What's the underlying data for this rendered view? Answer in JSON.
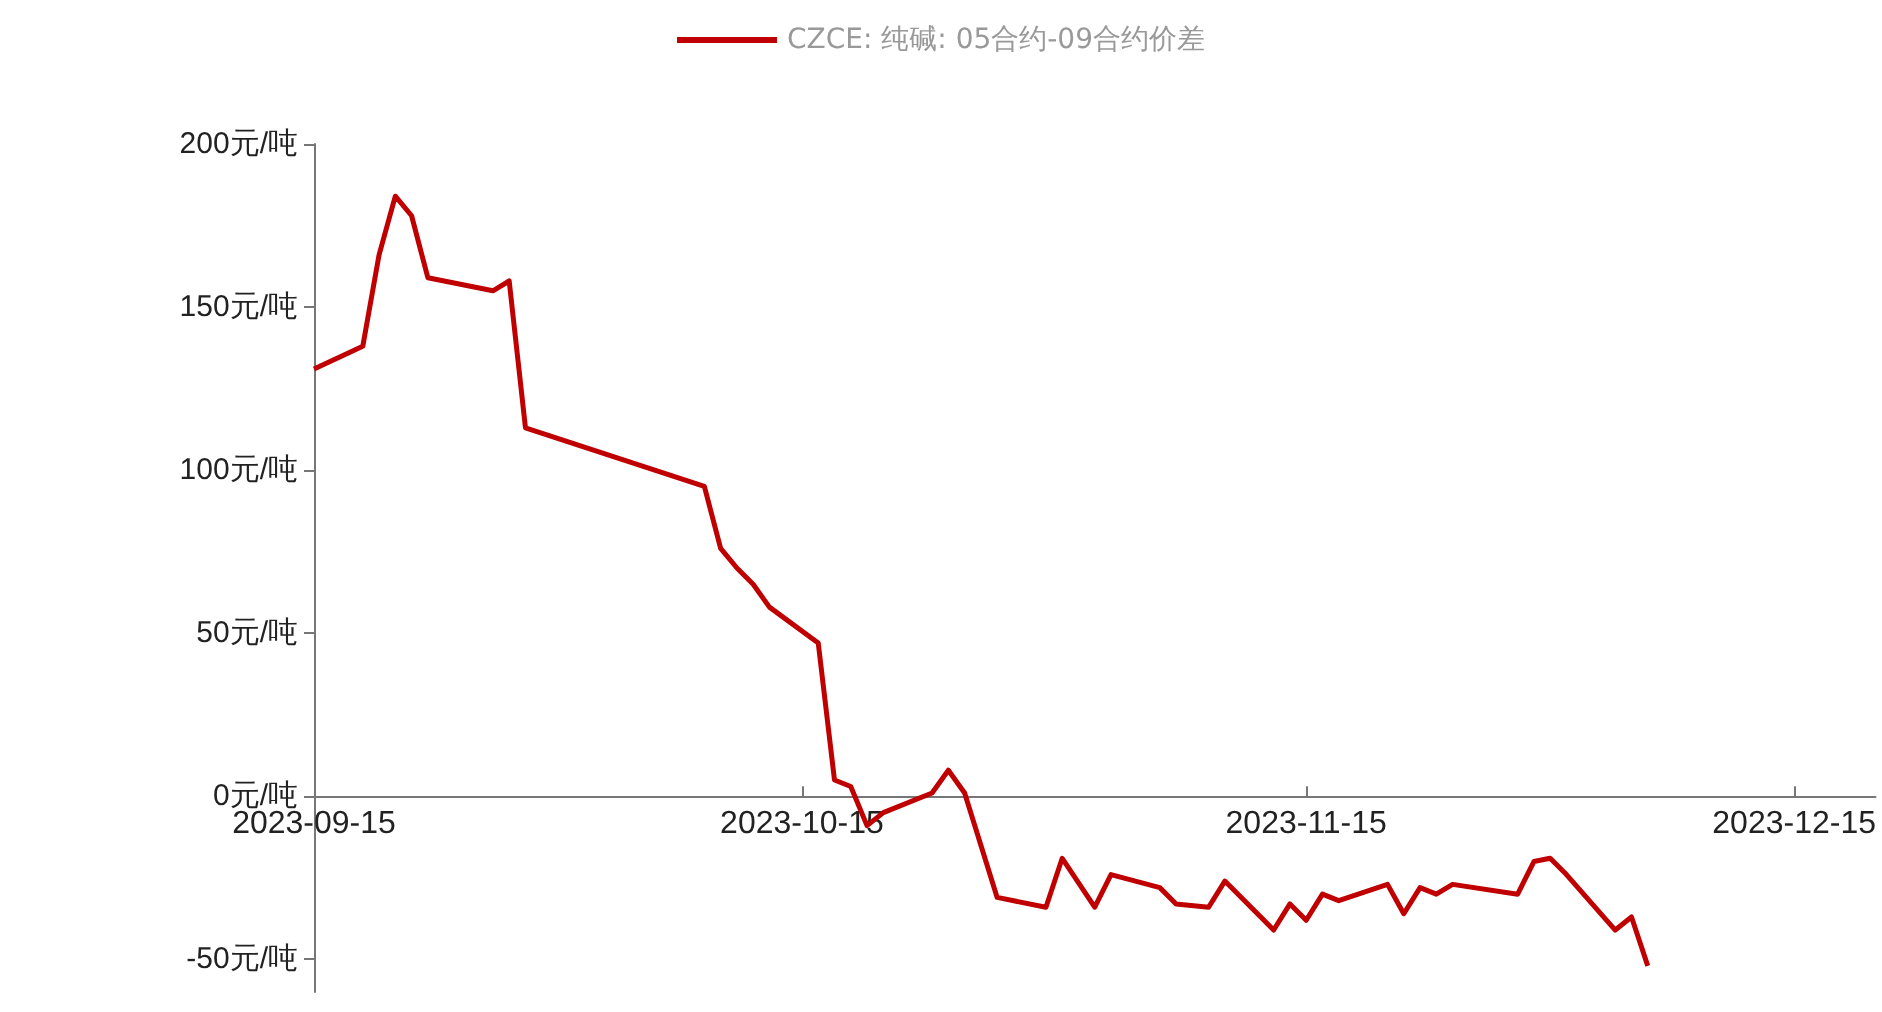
{
  "chart_data": {
    "type": "line",
    "x": [
      "2023-09-15",
      "2023-09-18",
      "2023-09-19",
      "2023-09-20",
      "2023-09-21",
      "2023-09-22",
      "2023-09-26",
      "2023-09-27",
      "2023-09-28",
      "2023-10-09",
      "2023-10-10",
      "2023-10-11",
      "2023-10-12",
      "2023-10-13",
      "2023-10-16",
      "2023-10-17",
      "2023-10-18",
      "2023-10-19",
      "2023-10-20",
      "2023-10-23",
      "2023-10-24",
      "2023-10-25",
      "2023-10-27",
      "2023-10-30",
      "2023-10-31",
      "2023-11-02",
      "2023-11-03",
      "2023-11-06",
      "2023-11-07",
      "2023-11-09",
      "2023-11-10",
      "2023-11-13",
      "2023-11-14",
      "2023-11-15",
      "2023-11-16",
      "2023-11-17",
      "2023-11-20",
      "2023-11-21",
      "2023-11-22",
      "2023-11-23",
      "2023-11-24",
      "2023-11-28",
      "2023-11-29",
      "2023-11-30",
      "2023-12-01",
      "2023-12-04",
      "2023-12-05",
      "2023-12-06"
    ],
    "series": [
      {
        "name": "CZCE: 纯碱: 05合约-09合约价差",
        "color": "#c00000",
        "values": [
          131,
          138,
          166,
          184,
          178,
          159,
          155,
          158,
          113,
          95,
          76,
          70,
          65,
          58,
          47,
          5,
          3,
          -9,
          -5,
          1,
          8,
          1,
          -31,
          -34,
          -19,
          -34,
          -24,
          -28,
          -33,
          -34,
          -26,
          -41,
          -33,
          -38,
          -30,
          -32,
          -27,
          -36,
          -28,
          -30,
          -27,
          -30,
          -20,
          -19,
          -24,
          -41,
          -37,
          -52
        ]
      }
    ],
    "xlim": [
      "2023-09-15",
      "2023-12-20"
    ],
    "xticks": [
      "2023-09-15",
      "2023-10-15",
      "2023-11-15",
      "2023-12-15"
    ],
    "ylim": [
      -60,
      200
    ],
    "yticks": [
      {
        "value": -50,
        "label": "-50元/吨"
      },
      {
        "value": 0,
        "label": "0元/吨"
      },
      {
        "value": 50,
        "label": "50元/吨"
      },
      {
        "value": 100,
        "label": "100元/吨"
      },
      {
        "value": 150,
        "label": "150元/吨"
      },
      {
        "value": 200,
        "label": "200元/吨"
      }
    ],
    "grid": false,
    "legend": "top",
    "marker": "none",
    "line_style": "solid"
  }
}
